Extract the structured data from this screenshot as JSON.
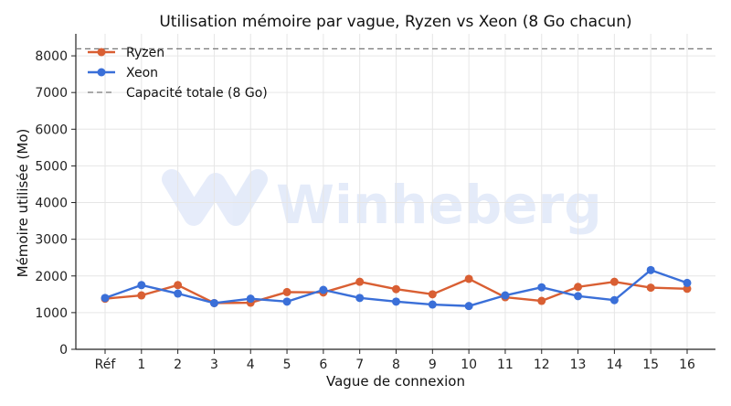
{
  "chart_data": {
    "type": "line",
    "title": "Utilisation mémoire par vague, Ryzen vs Xeon (8 Go chacun)",
    "xlabel": "Vague de connexion",
    "ylabel": "Mémoire utilisée (Mo)",
    "categories": [
      "Réf",
      "1",
      "2",
      "3",
      "4",
      "5",
      "6",
      "7",
      "8",
      "9",
      "10",
      "11",
      "12",
      "13",
      "14",
      "15",
      "16"
    ],
    "ylim": [
      0,
      8600
    ],
    "yticks": [
      0,
      1000,
      2000,
      3000,
      4000,
      5000,
      6000,
      7000,
      8000
    ],
    "grid": true,
    "legend_position": "top-left",
    "series": [
      {
        "name": "Ryzen",
        "color": "#d95f33",
        "values": [
          1380,
          1470,
          1750,
          1260,
          1270,
          1560,
          1550,
          1840,
          1640,
          1500,
          1920,
          1420,
          1320,
          1700,
          1840,
          1680,
          1650
        ]
      },
      {
        "name": "Xeon",
        "color": "#3a6fd8",
        "values": [
          1400,
          1750,
          1520,
          1260,
          1380,
          1300,
          1620,
          1400,
          1300,
          1220,
          1180,
          1470,
          1690,
          1450,
          1340,
          2160,
          1810
        ]
      }
    ],
    "reference_line": {
      "name": "Capacité totale (8 Go)",
      "value": 8192,
      "color": "#777777",
      "style": "dashed"
    }
  },
  "watermark": {
    "text": "Winheberg",
    "color": "#3a6fd8",
    "icon": "winheberg-logo-icon"
  }
}
